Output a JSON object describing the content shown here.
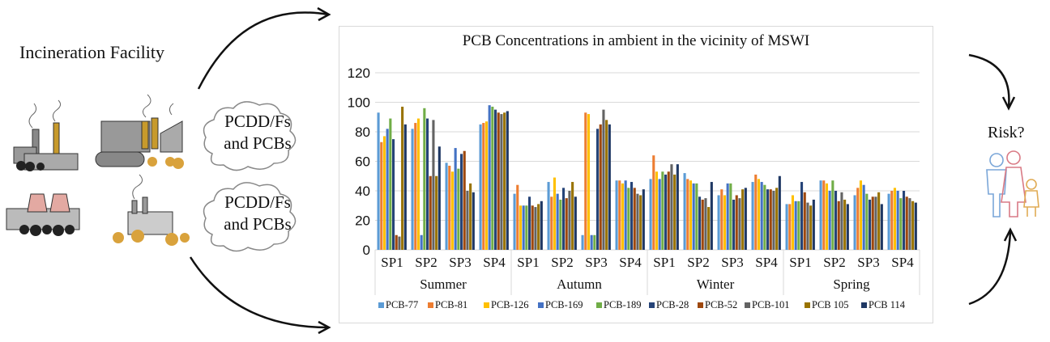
{
  "left_panel": {
    "title": "Incineration Facility",
    "cloud_1": {
      "line1": "PCDD/Fs",
      "line2": "and PCBs"
    },
    "cloud_2": {
      "line1": "PCDD/Fs",
      "line2": "and PCBs"
    }
  },
  "right_panel": {
    "label": "Risk?"
  },
  "chart_data": {
    "type": "bar",
    "title": "PCB Concentrations in ambient in the vicinity of MSWI",
    "xlabel": "",
    "ylabel": "",
    "ylim": [
      0,
      120
    ],
    "yticks": [
      0,
      20,
      40,
      60,
      80,
      100,
      120
    ],
    "grid": true,
    "legend_position": "bottom",
    "groups": [
      "Summer",
      "Autumn",
      "Winter",
      "Spring"
    ],
    "categories": [
      "SP1",
      "SP2",
      "SP3",
      "SP4",
      "SP1",
      "SP2",
      "SP3",
      "SP4",
      "SP1",
      "SP2",
      "SP3",
      "SP4",
      "SP1",
      "SP2",
      "SP3",
      "SP4"
    ],
    "series": [
      {
        "name": "PCB-77",
        "color": "#5b9bd5",
        "values": [
          93,
          82,
          59,
          85,
          38,
          46,
          10,
          47,
          48,
          52,
          37,
          46,
          31,
          47,
          37,
          38
        ]
      },
      {
        "name": "PCB-81",
        "color": "#ed7d31",
        "values": [
          73,
          86,
          57,
          86,
          44,
          36,
          93,
          47,
          64,
          48,
          41,
          51,
          31,
          47,
          42,
          40
        ]
      },
      {
        "name": "PCB-126",
        "color": "#ffc000",
        "values": [
          77,
          89,
          53,
          87,
          30,
          49,
          92,
          45,
          53,
          47,
          37,
          48,
          37,
          45,
          47,
          42
        ]
      },
      {
        "name": "PCB-169",
        "color": "#4472c4",
        "values": [
          82,
          10,
          69,
          98,
          30,
          38,
          10,
          47,
          48,
          45,
          45,
          46,
          33,
          40,
          44,
          40
        ]
      },
      {
        "name": "PCB-189",
        "color": "#70ad47",
        "values": [
          89,
          96,
          55,
          97,
          30,
          34,
          10,
          42,
          53,
          45,
          45,
          44,
          33,
          47,
          38,
          35
        ]
      },
      {
        "name": "PCB-28",
        "color": "#264478",
        "values": [
          75,
          89,
          65,
          95,
          36,
          42,
          82,
          46,
          51,
          36,
          34,
          41,
          46,
          40,
          34,
          40
        ]
      },
      {
        "name": "PCB-52",
        "color": "#9e480e",
        "values": [
          10,
          50,
          67,
          93,
          30,
          35,
          85,
          42,
          53,
          34,
          37,
          41,
          39,
          33,
          36,
          36
        ]
      },
      {
        "name": "PCB-101",
        "color": "#636363",
        "values": [
          9,
          88,
          40,
          92,
          29,
          40,
          95,
          38,
          58,
          35,
          35,
          40,
          32,
          39,
          36,
          35
        ]
      },
      {
        "name": "PCB 105",
        "color": "#997300",
        "values": [
          97,
          50,
          45,
          93,
          31,
          46,
          88,
          37,
          51,
          29,
          41,
          42,
          30,
          34,
          39,
          33
        ]
      },
      {
        "name": "PCB 114",
        "color": "#1f3864",
        "values": [
          85,
          70,
          39,
          94,
          33,
          36,
          85,
          41,
          58,
          46,
          42,
          50,
          34,
          31,
          31,
          32
        ]
      }
    ]
  }
}
